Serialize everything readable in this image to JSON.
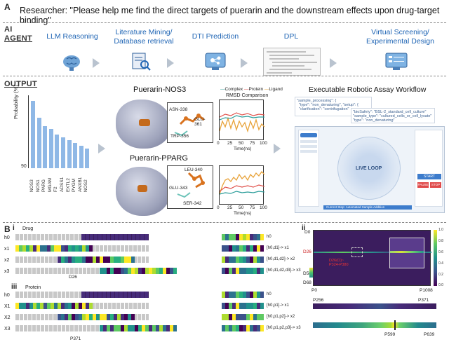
{
  "panel_a": "A",
  "header": "Researcher: \"Please help me find the direct targets of puerarin and the downstream effects upon drug-target binding\"",
  "ai_label_1": "AI",
  "ai_label_2": "AGENT",
  "stages": [
    {
      "label": "LLM Reasoning",
      "icon": "brain-icon"
    },
    {
      "label": "Literature Mining/\nDatabase retrieval",
      "icon": "document-search-icon"
    },
    {
      "label": "DTI Prediction",
      "icon": "molecule-screen-icon"
    },
    {
      "label": "DPL",
      "icon": "code-snippet-icon"
    },
    {
      "label": "Virtual Screening/\nExperimental Design",
      "icon": "monitor-list-icon"
    }
  ],
  "output_label": "OUTPUT",
  "prob_chart": {
    "type": "bar",
    "ylabel": "Probability (%)",
    "ytick": "90",
    "categories": [
      "NOS3",
      "NOS1",
      "PARG",
      "MGAM",
      "F2",
      "ADSS1",
      "EXTL2",
      "PYGM",
      "ANXB1",
      "NOS2"
    ],
    "values": [
      100,
      97,
      95.5,
      95,
      94,
      93.5,
      93,
      92.5,
      92,
      91.5
    ]
  },
  "complex1": {
    "title": "Puerarin-NOS3",
    "residues": [
      "ASN-338",
      "GLU-361",
      "TRP-356"
    ]
  },
  "complex2": {
    "title": "Puerarin-PPARG",
    "residues": [
      "LEU-340",
      "GLU-343",
      "SER-342"
    ]
  },
  "rmsd": {
    "legend": [
      "Complex",
      "Protein",
      "Ligand"
    ],
    "title": "RMSD Comparison",
    "xticks": [
      "0",
      "25",
      "50",
      "75",
      "100"
    ],
    "xlabel": "Time(ns)",
    "colors": {
      "complex": "#2b9d9a",
      "protein": "#e0504a",
      "ligand": "#e8a33a"
    }
  },
  "workflow": {
    "title": "Executable Robotic Assay Workflow",
    "code1": "\"sample_processing\": {\n  \"type\": \"non_denaturing\", \"setup\": {\n  \"clarification\": \"centrifugation\"",
    "code2": "\"bioSafety\": \"BSL-2_standard_cell_culture\"\n\"sample_type\": \"cultured_cells_or_cell_lysate\"\n\"type\": \"non_denaturing\"",
    "center": "LIVE LOOP",
    "buttons": [
      "START",
      "PAUSE",
      "STOP"
    ],
    "status": "Current Step: Automated Sample Addition"
  },
  "panel_b": "B",
  "sub_i": "i",
  "sub_ii": "ii",
  "sub_iii": "iii",
  "drug_label": "Drug",
  "protein_label": "Protein",
  "drug_rows": [
    "h0",
    "x1",
    "x2",
    "x3"
  ],
  "protein_rows": [
    "h0",
    "X1",
    "X2",
    "X3"
  ],
  "drug_out": [
    "h0",
    "[h0,d1]-> x1",
    "[h0,d1,d2]-> x2",
    "[h0,d1,d2,d3]-> x3"
  ],
  "protein_out": [
    "h0",
    "[h0,p1]-> x1",
    "[h0,p1,p2]-> x2",
    "[h0,p1,p2,p3]-> x3"
  ],
  "drug_marker": "D26",
  "protein_marker": "P371",
  "heatmap": {
    "yticks": [
      "D0",
      "D26",
      "D58",
      "D68"
    ],
    "xticks": [
      "P0",
      "P1008"
    ],
    "annotation": "D26(O)~\nP324-P380",
    "colorbar": [
      "1.0",
      "0.8",
      "0.6",
      "0.4",
      "0.2",
      "0.0"
    ],
    "strip1_ticks": [
      "P256",
      "P371"
    ],
    "strip2_ticks": [
      "P599",
      "P639"
    ]
  }
}
